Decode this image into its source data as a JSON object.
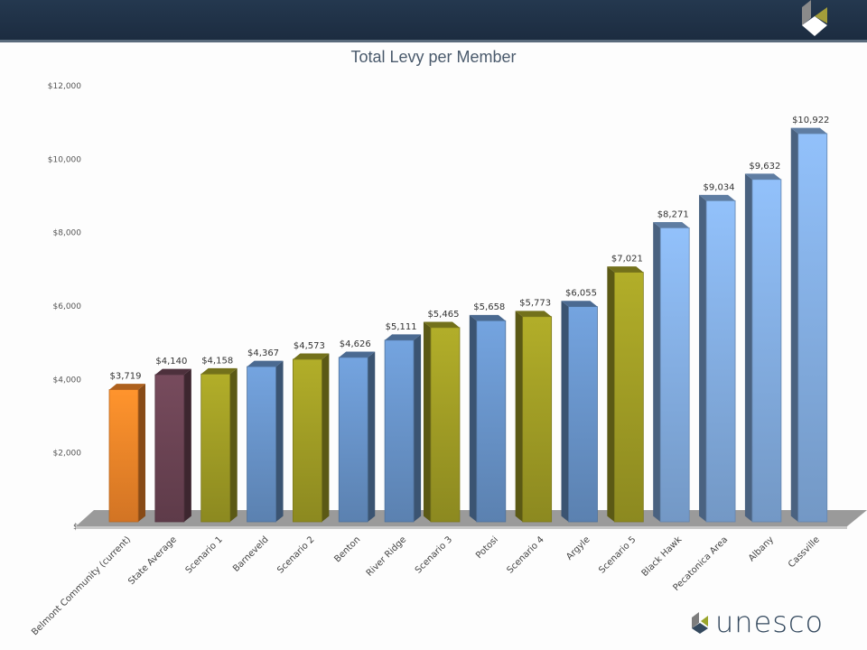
{
  "colors": {
    "orange": "#f7892a",
    "purple": "#6e4556",
    "olive": "#a5a126",
    "blue": "#6b98cf",
    "lightblue": "#87b3e8"
  },
  "brand": {
    "name": "unesco"
  },
  "chart_data": {
    "type": "bar",
    "title": "Total Levy per Member",
    "xlabel": "",
    "ylabel": "",
    "ylim": [
      0,
      12000
    ],
    "yticks": [
      {
        "v": 0,
        "label": "$-"
      },
      {
        "v": 2000,
        "label": "$2,000"
      },
      {
        "v": 4000,
        "label": "$4,000"
      },
      {
        "v": 6000,
        "label": "$6,000"
      },
      {
        "v": 8000,
        "label": "$8,000"
      },
      {
        "v": 10000,
        "label": "$10,000"
      },
      {
        "v": 12000,
        "label": "$12,000"
      }
    ],
    "categories": [
      "Belmont Community (current)",
      "State Average",
      "Scenario 1",
      "Barneveld",
      "Scenario 2",
      "Benton",
      "River Ridge",
      "Scenario 3",
      "Potosi",
      "Scenario 4",
      "Argyle",
      "Scenario 5",
      "Black Hawk",
      "Pecatonica Area",
      "Albany",
      "Cassville"
    ],
    "values": [
      3719,
      4140,
      4158,
      4367,
      4573,
      4626,
      5111,
      5465,
      5658,
      5773,
      6055,
      7021,
      8271,
      9034,
      9632,
      10922
    ],
    "data_labels": [
      "$3,719",
      "$4,140",
      "$4,158",
      "$4,367",
      "$4,573",
      "$4,626",
      "$5,111",
      "$5,465",
      "$5,658",
      "$5,773",
      "$6,055",
      "$7,021",
      "$8,271",
      "$9,034",
      "$9,632",
      "$10,922"
    ],
    "bar_colors": [
      "orange",
      "purple",
      "olive",
      "blue",
      "olive",
      "blue",
      "blue",
      "olive",
      "blue",
      "olive",
      "blue",
      "olive",
      "lightblue",
      "lightblue",
      "lightblue",
      "lightblue"
    ],
    "grid": false,
    "legend": "none"
  }
}
